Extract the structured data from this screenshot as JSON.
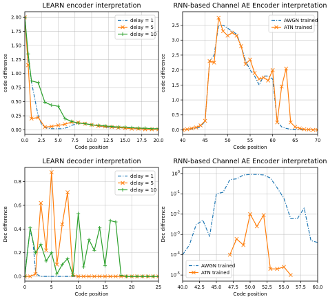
{
  "colors": {
    "blue": "#1f77b4",
    "orange": "#ff7f0e",
    "green": "#2ca02c"
  },
  "chart_data": [
    {
      "type": "line",
      "title": "LEARN encoder interpretation",
      "xlabel": "Code position",
      "ylabel": "code difference",
      "xlim": [
        0,
        20
      ],
      "ylim": [
        -0.08,
        2.1
      ],
      "xticks": [
        0.0,
        2.5,
        5.0,
        7.5,
        10.0,
        12.5,
        15.0,
        17.5,
        20.0
      ],
      "xtick_labels": [
        "0.0",
        "2.5",
        "5.0",
        "7.5",
        "10.0",
        "12.5",
        "15.0",
        "17.5",
        "20.0"
      ],
      "yticks": [
        0.0,
        0.25,
        0.5,
        0.75,
        1.0,
        1.25,
        1.5,
        1.75,
        2.0
      ],
      "ytick_labels": [
        "0.00",
        "0.25",
        "0.50",
        "0.75",
        "1.00",
        "1.25",
        "1.50",
        "1.75",
        "2.00"
      ],
      "log_y": false,
      "grid": true,
      "legend": "top-right",
      "series": [
        {
          "name": "delay = 1",
          "color": "blue",
          "style": "dashdot",
          "marker": "none",
          "x": [
            0,
            0.5,
            1,
            1.5,
            2,
            2.5,
            3,
            3.5,
            4,
            4.5,
            5,
            5.5,
            6,
            6.5,
            7,
            7.5,
            8,
            9,
            10,
            11,
            12,
            13,
            14,
            15,
            16,
            17,
            18,
            19,
            20
          ],
          "y": [
            2.0,
            1.3,
            0.85,
            0.55,
            0.25,
            0.1,
            0.04,
            0.03,
            0.02,
            0.02,
            0.02,
            0.02,
            0.03,
            0.05,
            0.08,
            0.1,
            0.12,
            0.11,
            0.09,
            0.07,
            0.05,
            0.04,
            0.04,
            0.03,
            0.03,
            0.02,
            0.02,
            0.02,
            0.02
          ]
        },
        {
          "name": "delay = 5",
          "color": "orange",
          "style": "solid",
          "marker": "x",
          "x": [
            0,
            0.5,
            1,
            2,
            3,
            4,
            5,
            6,
            7,
            8,
            9,
            10,
            11,
            12,
            13,
            14,
            15,
            16,
            17,
            18,
            19,
            20
          ],
          "y": [
            2.0,
            1.15,
            0.2,
            0.22,
            0.05,
            0.06,
            0.08,
            0.1,
            0.14,
            0.13,
            0.11,
            0.09,
            0.07,
            0.06,
            0.05,
            0.04,
            0.03,
            0.02,
            0.02,
            0.01,
            0.01,
            0.01
          ]
        },
        {
          "name": "delay = 10",
          "color": "green",
          "style": "solid",
          "marker": "+",
          "x": [
            0,
            0.5,
            1,
            2,
            3,
            4,
            5,
            6,
            7,
            8,
            9,
            10,
            11,
            12,
            13,
            14,
            15,
            16,
            17,
            18,
            19,
            20
          ],
          "y": [
            2.0,
            1.35,
            0.87,
            0.84,
            0.49,
            0.44,
            0.42,
            0.2,
            0.15,
            0.12,
            0.11,
            0.09,
            0.08,
            0.07,
            0.06,
            0.05,
            0.05,
            0.04,
            0.03,
            0.03,
            0.02,
            0.02
          ]
        }
      ]
    },
    {
      "type": "line",
      "title": "RNN-based Channel AE Encoder interpretation",
      "xlabel": "Code position",
      "ylabel": "code difference",
      "xlim": [
        40,
        70
      ],
      "ylim": [
        -0.15,
        3.95
      ],
      "xticks": [
        40,
        45,
        50,
        55,
        60,
        65,
        70
      ],
      "xtick_labels": [
        "40",
        "45",
        "50",
        "55",
        "60",
        "65",
        "70"
      ],
      "yticks": [
        0.0,
        0.5,
        1.0,
        1.5,
        2.0,
        2.5,
        3.0,
        3.5
      ],
      "ytick_labels": [
        "0.0",
        "0.5",
        "1.0",
        "1.5",
        "2.0",
        "2.5",
        "3.0",
        "3.5"
      ],
      "log_y": false,
      "grid": true,
      "legend": "top-right",
      "series": [
        {
          "name": "AWGN trained",
          "color": "blue",
          "style": "dashdot",
          "marker": "none",
          "x": [
            40,
            41,
            42,
            43,
            44,
            45,
            46,
            47,
            48,
            49,
            50,
            51,
            52,
            53,
            54,
            55,
            56,
            57,
            58,
            59,
            60,
            61,
            62,
            63,
            64,
            65,
            66,
            67,
            68,
            69,
            70
          ],
          "y": [
            0.0,
            0.02,
            0.03,
            0.05,
            0.1,
            0.3,
            2.3,
            2.5,
            3.5,
            3.5,
            3.4,
            3.3,
            3.2,
            2.8,
            2.3,
            2.0,
            1.8,
            1.5,
            1.8,
            1.8,
            1.7,
            0.3,
            0.1,
            0.05,
            0.02,
            0.02,
            0.01,
            0.01,
            0.01,
            0.0,
            0.0
          ]
        },
        {
          "name": "ATN trained",
          "color": "orange",
          "style": "solid",
          "marker": "x",
          "x": [
            40,
            41,
            42,
            43,
            44,
            45,
            46,
            47,
            48,
            49,
            50,
            51,
            52,
            53,
            54,
            55,
            56,
            57,
            58,
            59,
            60,
            61,
            62,
            63,
            64,
            65,
            66,
            67,
            68,
            69,
            70
          ],
          "y": [
            0.0,
            0.02,
            0.05,
            0.08,
            0.15,
            0.3,
            2.3,
            2.25,
            3.75,
            3.3,
            3.15,
            3.25,
            3.15,
            2.8,
            2.2,
            2.35,
            1.9,
            1.7,
            1.75,
            1.65,
            2.0,
            0.25,
            1.45,
            2.05,
            0.25,
            0.1,
            0.05,
            0.02,
            0.01,
            0.0,
            0.0
          ]
        }
      ]
    },
    {
      "type": "line",
      "title": "LEARN decoder interpretation",
      "xlabel": "Code position",
      "ylabel": "Dec difference",
      "xlim": [
        0,
        25
      ],
      "ylim": [
        -0.04,
        0.92
      ],
      "xticks": [
        0,
        5,
        10,
        15,
        20,
        25
      ],
      "xtick_labels": [
        "0",
        "5",
        "10",
        "15",
        "20",
        "25"
      ],
      "yticks": [
        0.0,
        0.2,
        0.4,
        0.6,
        0.8
      ],
      "ytick_labels": [
        "0.0",
        "0.2",
        "0.4",
        "0.6",
        "0.8"
      ],
      "log_y": false,
      "grid": true,
      "legend": "top-right",
      "series": [
        {
          "name": "delay = 1",
          "color": "blue",
          "style": "dashdot",
          "marker": "none",
          "x": [
            0,
            0.5,
            1,
            1.5,
            2,
            2.5,
            3,
            4,
            5,
            6,
            7,
            8,
            9,
            10,
            12,
            14,
            16,
            18,
            20,
            22,
            24,
            25
          ],
          "y": [
            0.0,
            0.22,
            0.39,
            0.3,
            0.05,
            0.01,
            0.0,
            0.0,
            0.0,
            0.0,
            0.0,
            0.0,
            0.0,
            0.0,
            0.0,
            0.0,
            0.0,
            0.0,
            0.0,
            0.0,
            0.0,
            0.0
          ]
        },
        {
          "name": "delay = 5",
          "color": "orange",
          "style": "solid",
          "marker": "x",
          "x": [
            0,
            1,
            2,
            3,
            4,
            5,
            6,
            7,
            8,
            9,
            10,
            11,
            12,
            13,
            14,
            15,
            16,
            17,
            18,
            19,
            20,
            21,
            22,
            23,
            24,
            25
          ],
          "y": [
            0.0,
            0.0,
            0.02,
            0.62,
            0.22,
            0.88,
            0.1,
            0.44,
            0.71,
            0.01,
            0.0,
            0.0,
            0.0,
            0.0,
            0.0,
            0.0,
            0.0,
            0.0,
            0.0,
            0.0,
            0.0,
            0.0,
            0.0,
            0.0,
            0.0,
            0.0
          ]
        },
        {
          "name": "delay = 10",
          "color": "green",
          "style": "solid",
          "marker": "+",
          "x": [
            0,
            1,
            2,
            3,
            4,
            5,
            6,
            7,
            8,
            9,
            10,
            11,
            12,
            13,
            14,
            15,
            16,
            17,
            18,
            19,
            20,
            21,
            22,
            23,
            24,
            25
          ],
          "y": [
            0.0,
            0.41,
            0.2,
            0.27,
            0.13,
            0.2,
            0.02,
            0.1,
            0.15,
            0.01,
            0.53,
            0.08,
            0.31,
            0.22,
            0.41,
            0.09,
            0.47,
            0.46,
            0.01,
            0.0,
            0.0,
            0.0,
            0.0,
            0.0,
            0.0,
            0.0
          ]
        }
      ]
    },
    {
      "type": "line",
      "title": "RNN-based Channel AE Encoder interpretation",
      "xlabel": "Code position",
      "ylabel": "Dec difference",
      "xlim": [
        40,
        60
      ],
      "ylim": [
        5e-06,
        2
      ],
      "xticks": [
        40,
        42.5,
        45,
        47.5,
        50,
        52.5,
        55,
        57.5,
        60
      ],
      "xtick_labels": [
        "40.0",
        "42.5",
        "45.0",
        "47.5",
        "50.0",
        "52.5",
        "55.0",
        "57.5",
        "60.0"
      ],
      "yticks": [
        1e-05,
        0.0001,
        0.001,
        0.01,
        0.1,
        1
      ],
      "ytick_labels": [
        "10",
        "10",
        "10",
        "10",
        "10",
        "10"
      ],
      "ytick_exponents": [
        "-5",
        "-4",
        "-3",
        "-2",
        "-1",
        "0"
      ],
      "log_y": true,
      "grid": true,
      "legend": "bottom-left",
      "series": [
        {
          "name": "AWGN trained",
          "color": "blue",
          "style": "dashdot",
          "marker": "none",
          "x": [
            40,
            41,
            42,
            43,
            44,
            45,
            46,
            47,
            48,
            49,
            50,
            51,
            52,
            53,
            54,
            55,
            56,
            57,
            58,
            59,
            60
          ],
          "y": [
            0.0001,
            0.0003,
            0.003,
            0.005,
            0.0008,
            0.1,
            0.12,
            0.5,
            0.55,
            0.85,
            0.9,
            0.9,
            0.85,
            0.6,
            0.2,
            0.06,
            0.006,
            0.006,
            0.02,
            0.0005,
            0.0004
          ]
        },
        {
          "name": "ATN trained",
          "color": "orange",
          "style": "solid",
          "marker": "x",
          "x": [
            47,
            48,
            49,
            50,
            51,
            52,
            53,
            54,
            55,
            56
          ],
          "y": [
            0.0001,
            0.0006,
            0.0003,
            0.01,
            0.0025,
            0.009,
            2e-05,
            2e-05,
            2.5e-05,
            1e-05
          ]
        }
      ]
    }
  ]
}
